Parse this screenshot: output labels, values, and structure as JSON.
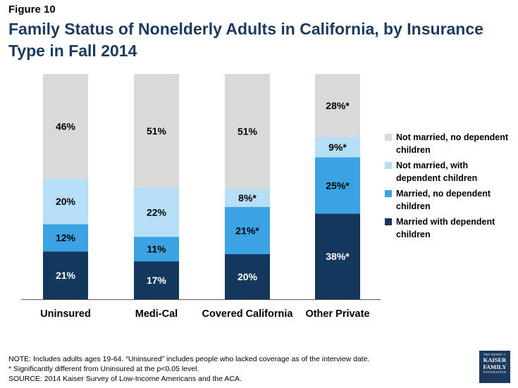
{
  "figure_label": "Figure 10",
  "title": "Family Status of Nonelderly Adults in California, by Insurance Type in Fall 2014",
  "chart_data": {
    "type": "bar",
    "stacked": true,
    "percent_stacked": true,
    "categories": [
      "Uninsured",
      "Medi-Cal",
      "Covered California",
      "Other Private"
    ],
    "series": [
      {
        "name": "Married with dependent children",
        "color": "#14375d",
        "values": [
          21,
          17,
          20,
          38
        ],
        "labels": [
          "21%",
          "17%",
          "20%",
          "38%*"
        ],
        "label_color": "#ffffff"
      },
      {
        "name": "Married, no dependent children",
        "color": "#3ba3e3",
        "values": [
          12,
          11,
          21,
          25
        ],
        "labels": [
          "12%",
          "11%",
          "21%*",
          "25%*"
        ],
        "label_color": "#000000"
      },
      {
        "name": "Not married, with dependent children",
        "color": "#b4dff6",
        "values": [
          20,
          22,
          8,
          9
        ],
        "labels": [
          "20%",
          "22%",
          "8%*",
          "9%*"
        ],
        "label_color": "#000000"
      },
      {
        "name": "Not married, no dependent children",
        "color": "#d9d9d9",
        "values": [
          46,
          51,
          51,
          28
        ],
        "labels": [
          "46%",
          "51%",
          "51%",
          "28%*"
        ],
        "label_color": "#000000"
      }
    ],
    "legend_position": "right",
    "ylim": [
      0,
      100
    ]
  },
  "legend": [
    {
      "label": "Not married, no dependent children",
      "color": "#d9d9d9"
    },
    {
      "label": "Not married, with dependent children",
      "color": "#b4dff6"
    },
    {
      "label": "Married, no dependent children",
      "color": "#3ba3e3"
    },
    {
      "label": "Married with dependent children",
      "color": "#14375d"
    }
  ],
  "notes": {
    "line1": "NOTE: Includes adults ages 19-64. “Uninsured” includes people who lacked coverage as of the interview date.",
    "line2": "* Significantly different from Uninsured at the p<0.05 level.",
    "line3": "SOURCE: 2014 Kaiser Survey of Low-Income Americans and the ACA."
  },
  "logo": {
    "line1": "THE HENRY J.",
    "line2": "KAISER",
    "line3": "FAMILY",
    "line4": "FOUNDATION"
  }
}
